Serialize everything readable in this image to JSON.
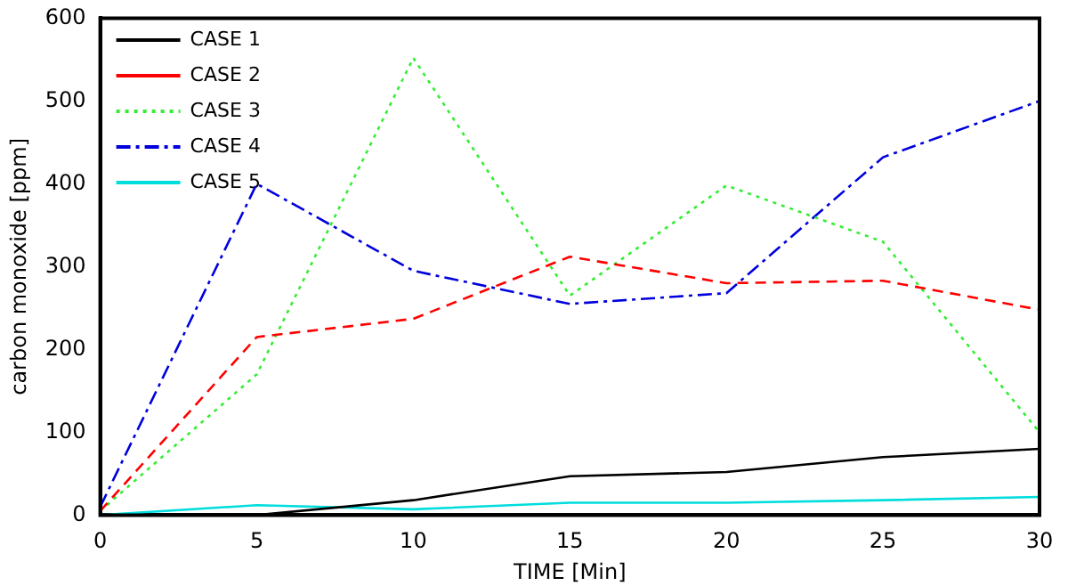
{
  "chart_data": {
    "type": "line",
    "xlabel": "TIME [Min]",
    "ylabel": "carbon monoxide [ppm]",
    "x": [
      0,
      5,
      10,
      15,
      20,
      25,
      30
    ],
    "series": [
      {
        "name": "CASE 1",
        "color": "#000000",
        "line_style": "solid",
        "values": [
          0,
          0,
          18,
          47,
          52,
          70,
          80
        ]
      },
      {
        "name": "CASE 2",
        "color": "#ff0000",
        "line_style": "dashed",
        "values": [
          5,
          215,
          237,
          312,
          280,
          283,
          248
        ]
      },
      {
        "name": "CASE 3",
        "color": "#33ee33",
        "line_style": "dotted",
        "values": [
          5,
          170,
          552,
          265,
          398,
          330,
          100
        ]
      },
      {
        "name": "CASE 4",
        "color": "#0000dd",
        "line_style": "dashdot",
        "values": [
          10,
          400,
          295,
          255,
          268,
          432,
          500
        ]
      },
      {
        "name": "CASE 5",
        "color": "#00dddd",
        "line_style": "solid",
        "values": [
          0,
          12,
          7,
          15,
          15,
          18,
          22
        ]
      }
    ],
    "xlim": [
      0,
      30
    ],
    "xticks": [
      0,
      5,
      10,
      15,
      20,
      25,
      30
    ],
    "ylim": [
      0,
      600
    ],
    "yticks": [
      0,
      100,
      200,
      300,
      400,
      500,
      600
    ],
    "grid": false,
    "legend": "top left",
    "marker": "none"
  }
}
